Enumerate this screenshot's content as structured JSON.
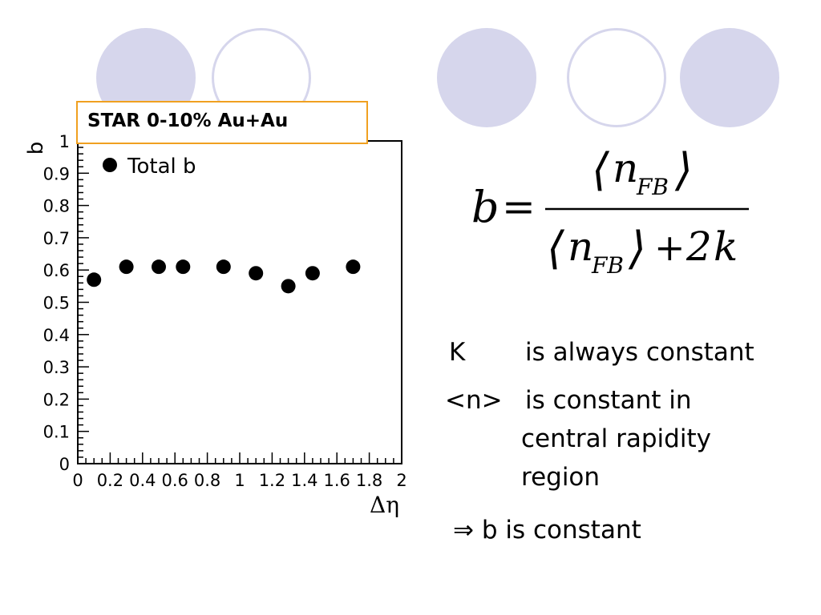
{
  "slide": {
    "colors": {
      "circle_fill": "#d6d6ec",
      "title_border": "#f0a020",
      "marker": "#000000"
    }
  },
  "chart_data": {
    "type": "scatter",
    "title": "STAR 0-10% Au+Au",
    "xlabel": "Δη",
    "ylabel": "b",
    "xlim": [
      0,
      2
    ],
    "ylim": [
      0,
      1
    ],
    "x_ticks": [
      {
        "value": 0,
        "label": "0"
      },
      {
        "value": 0.2,
        "label": "0.2"
      },
      {
        "value": 0.4,
        "label": "0.4"
      },
      {
        "value": 0.6,
        "label": "0.6"
      },
      {
        "value": 0.8,
        "label": "0.8"
      },
      {
        "value": 1,
        "label": "1"
      },
      {
        "value": 1.2,
        "label": "1.2"
      },
      {
        "value": 1.4,
        "label": "1.4"
      },
      {
        "value": 1.6,
        "label": "1.6"
      },
      {
        "value": 1.8,
        "label": "1.8"
      },
      {
        "value": 2,
        "label": "2"
      }
    ],
    "y_ticks": [
      {
        "value": 0,
        "label": "0"
      },
      {
        "value": 0.1,
        "label": "0.1"
      },
      {
        "value": 0.2,
        "label": "0.2"
      },
      {
        "value": 0.3,
        "label": "0.3"
      },
      {
        "value": 0.4,
        "label": "0.4"
      },
      {
        "value": 0.5,
        "label": "0.5"
      },
      {
        "value": 0.6,
        "label": "0.6"
      },
      {
        "value": 0.7,
        "label": "0.7"
      },
      {
        "value": 0.8,
        "label": "0.8"
      },
      {
        "value": 0.9,
        "label": "0.9"
      },
      {
        "value": 1,
        "label": "1"
      }
    ],
    "legend": {
      "position": "top-left",
      "entries": [
        "Total b"
      ]
    },
    "series": [
      {
        "name": "Total b",
        "marker": "circle",
        "color": "#000000",
        "x": [
          0.1,
          0.3,
          0.5,
          0.65,
          0.9,
          1.1,
          1.3,
          1.45,
          1.7
        ],
        "y": [
          0.57,
          0.61,
          0.61,
          0.61,
          0.61,
          0.59,
          0.55,
          0.59,
          0.61
        ]
      }
    ]
  },
  "formula": {
    "lhs": "b",
    "equals": "=",
    "numerator": "⟨n_FB⟩",
    "denominator": "⟨n_FB⟩ + 2k"
  },
  "notes": {
    "k_label": "K",
    "k_text": "is always constant",
    "n_label": "<n>",
    "n_text_line1": "is constant in",
    "n_text_line2": "central rapidity",
    "n_text_line3": "region",
    "conclusion": "⇒ b  is constant"
  }
}
